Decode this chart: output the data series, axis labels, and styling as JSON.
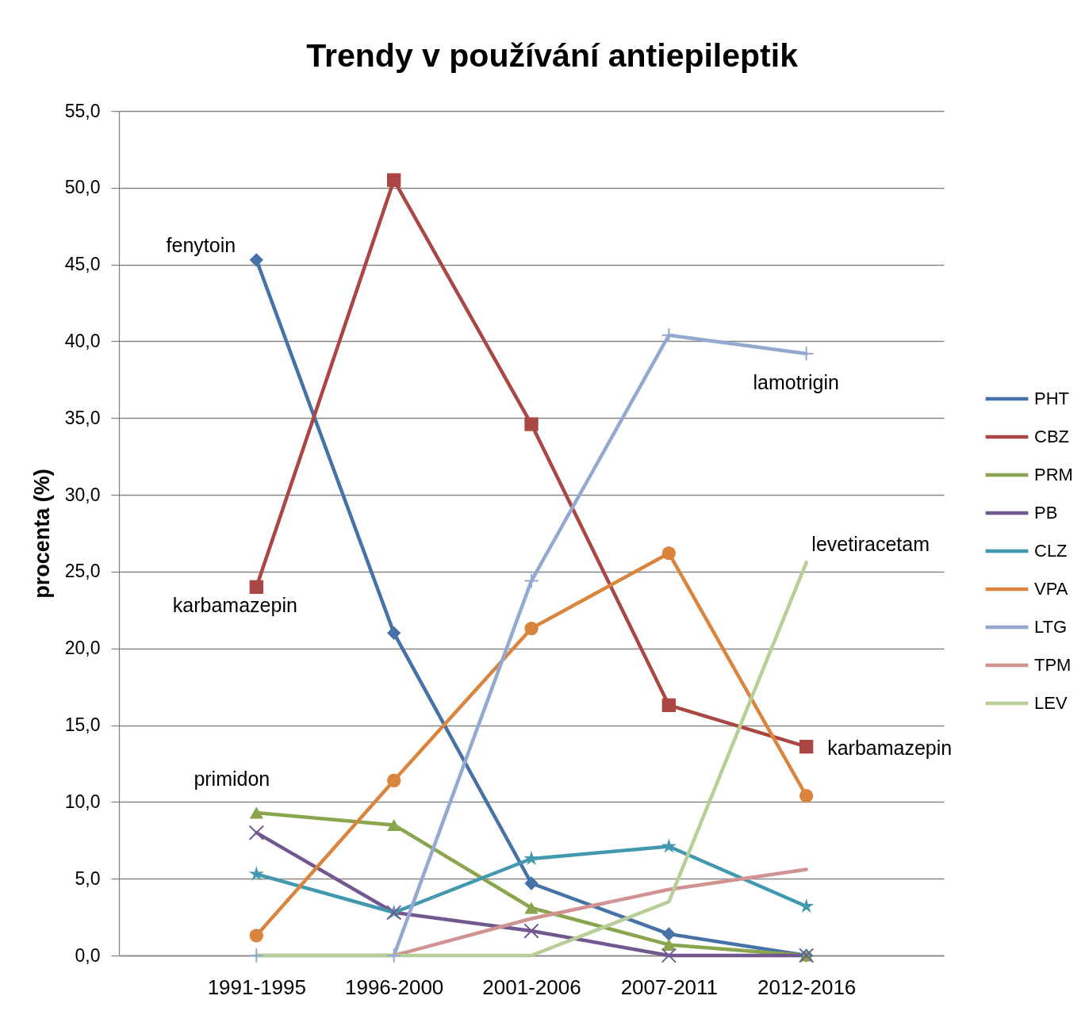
{
  "chart_data": {
    "type": "line",
    "title": "Trendy v používání antiepileptik",
    "ylabel": "procenta (%)",
    "categories": [
      "1991-1995",
      "1996-2000",
      "2001-2006",
      "2007-2011",
      "2012-2016"
    ],
    "series": [
      {
        "name": "PHT",
        "color": "#4572a7",
        "marker": "diamond",
        "values": [
          45.3,
          21.0,
          4.7,
          1.4,
          0.0
        ]
      },
      {
        "name": "CBZ",
        "color": "#aa4643",
        "marker": "square",
        "values": [
          24.0,
          50.5,
          34.6,
          16.3,
          13.6
        ]
      },
      {
        "name": "PRM",
        "color": "#89a54e",
        "marker": "triangle",
        "values": [
          9.3,
          8.5,
          3.1,
          0.7,
          0.0
        ]
      },
      {
        "name": "PB",
        "color": "#71588f",
        "marker": "x",
        "values": [
          8.0,
          2.8,
          1.6,
          0.0,
          0.0
        ]
      },
      {
        "name": "CLZ",
        "color": "#4198af",
        "marker": "star",
        "values": [
          5.3,
          2.8,
          6.3,
          7.1,
          3.2
        ]
      },
      {
        "name": "VPA",
        "color": "#db843d",
        "marker": "circle",
        "values": [
          1.3,
          11.4,
          21.3,
          26.2,
          10.4
        ]
      },
      {
        "name": "LTG",
        "color": "#93a9cf",
        "marker": "cross",
        "values": [
          0.0,
          0.0,
          24.4,
          40.4,
          39.2
        ]
      },
      {
        "name": "TPM",
        "color": "#d19392",
        "marker": "none",
        "values": [
          null,
          0.0,
          2.4,
          4.3,
          5.6
        ]
      },
      {
        "name": "LEV",
        "color": "#b9cd96",
        "marker": "none",
        "values": [
          0.0,
          0.0,
          0.0,
          3.5,
          25.6
        ]
      }
    ],
    "ylim": [
      0,
      55
    ],
    "yticks": [
      {
        "value": 0,
        "label": "0,0"
      },
      {
        "value": 5,
        "label": "5,0"
      },
      {
        "value": 10,
        "label": "10,0"
      },
      {
        "value": 15,
        "label": "15,0"
      },
      {
        "value": 20,
        "label": "20,0"
      },
      {
        "value": 25,
        "label": "25,0"
      },
      {
        "value": 30,
        "label": "30,0"
      },
      {
        "value": 35,
        "label": "35,0"
      },
      {
        "value": 40,
        "label": "40,0"
      },
      {
        "value": 45,
        "label": "45,0"
      },
      {
        "value": 50,
        "label": "50,0"
      },
      {
        "value": 55,
        "label": "55,0"
      }
    ],
    "grid": "y",
    "legend": "right",
    "line_style": "solid",
    "annotations": [
      {
        "text": "fenytoin",
        "x": "1991-1995",
        "y": 45.3
      },
      {
        "text": "karbamazepin",
        "x": "1991-1995",
        "y": 24.0
      },
      {
        "text": "primidon",
        "x": "1991-1995",
        "y": 9.3
      },
      {
        "text": "lamotrigin",
        "x": "2012-2016",
        "y": 39.2
      },
      {
        "text": "levetiracetam",
        "x": "2012-2016",
        "y": 25.6
      },
      {
        "text": "karbamazepin",
        "x": "2012-2016",
        "y": 13.6
      }
    ]
  }
}
